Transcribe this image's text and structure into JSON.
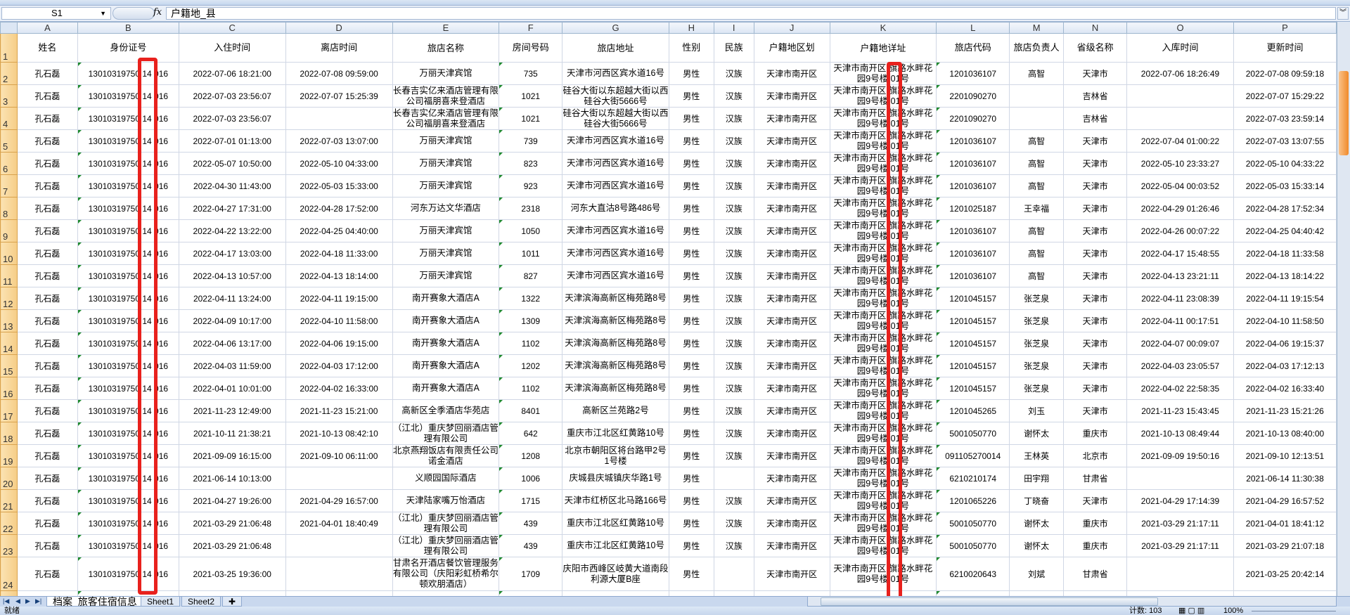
{
  "formula_bar": {
    "name_box": "S1",
    "fx": "fx",
    "formula": "户籍地_县"
  },
  "columns": [
    "A",
    "B",
    "C",
    "D",
    "E",
    "F",
    "G",
    "H",
    "I",
    "J",
    "K",
    "L",
    "M",
    "N",
    "O",
    "P"
  ],
  "headers": [
    "姓名",
    "身份证号",
    "入住时间",
    "离店时间",
    "旅店名称",
    "房间号码",
    "旅店地址",
    "性别",
    "民族",
    "户籍地区划",
    "户籍地详址",
    "旅店代码",
    "旅店负责人",
    "省级名称",
    "入库时间",
    "更新时间"
  ],
  "rows": [
    [
      "孔石磊",
      "13010319750 14 016",
      "2022-07-06 18:21:00",
      "2022-07-08 09:59:00",
      "万丽天津宾馆",
      "735",
      "天津市河西区宾水道16号",
      "男性",
      "汉族",
      "天津市南开区",
      "天津市南开区 旗路水畔花园9号楼 01号",
      "1201036107",
      "高智",
      "天津市",
      "2022-07-06 18:26:49",
      "2022-07-08 09:59:18"
    ],
    [
      "孔石磊",
      "13010319750 14 016",
      "2022-07-03 23:56:07",
      "2022-07-07 15:25:39",
      "长春吉实亿来酒店管理有限公司福朋喜来登酒店",
      "1021",
      "硅谷大街以东超越大街以西硅谷大街5666号",
      "男性",
      "汉族",
      "天津市南开区",
      "天津市南开区 旗路水畔花园9号楼 01号",
      "2201090270",
      "",
      "吉林省",
      "",
      "2022-07-07 15:29:22"
    ],
    [
      "孔石磊",
      "13010319750 14 016",
      "2022-07-03 23:56:07",
      "",
      "长春吉实亿来酒店管理有限公司福朋喜来登酒店",
      "1021",
      "硅谷大街以东超越大街以西硅谷大街5666号",
      "男性",
      "汉族",
      "天津市南开区",
      "天津市南开区 旗路水畔花园9号楼 01号",
      "2201090270",
      "",
      "吉林省",
      "",
      "2022-07-03 23:59:14"
    ],
    [
      "孔石磊",
      "13010319750 14 016",
      "2022-07-01 01:13:00",
      "2022-07-03 13:07:00",
      "万丽天津宾馆",
      "739",
      "天津市河西区宾水道16号",
      "男性",
      "汉族",
      "天津市南开区",
      "天津市南开区 旗路水畔花园9号楼 01号",
      "1201036107",
      "高智",
      "天津市",
      "2022-07-04 01:00:22",
      "2022-07-03 13:07:55"
    ],
    [
      "孔石磊",
      "13010319750 14 016",
      "2022-05-07 10:50:00",
      "2022-05-10 04:33:00",
      "万丽天津宾馆",
      "823",
      "天津市河西区宾水道16号",
      "男性",
      "汉族",
      "天津市南开区",
      "天津市南开区 旗路水畔花园9号楼 01号",
      "1201036107",
      "高智",
      "天津市",
      "2022-05-10 23:33:27",
      "2022-05-10 04:33:22"
    ],
    [
      "孔石磊",
      "13010319750 14 016",
      "2022-04-30 11:43:00",
      "2022-05-03 15:33:00",
      "万丽天津宾馆",
      "923",
      "天津市河西区宾水道16号",
      "男性",
      "汉族",
      "天津市南开区",
      "天津市南开区 旗路水畔花园9号楼 01号",
      "1201036107",
      "高智",
      "天津市",
      "2022-05-04 00:03:52",
      "2022-05-03 15:33:14"
    ],
    [
      "孔石磊",
      "13010319750 14 016",
      "2022-04-27 17:31:00",
      "2022-04-28 17:52:00",
      "河东万达文华酒店",
      "2318",
      "河东大直沽8号路486号",
      "男性",
      "汉族",
      "天津市南开区",
      "天津市南开区 旗路水畔花园9号楼 01号",
      "1201025187",
      "王幸福",
      "天津市",
      "2022-04-29 01:26:46",
      "2022-04-28 17:52:34"
    ],
    [
      "孔石磊",
      "13010319750 14 016",
      "2022-04-22 13:22:00",
      "2022-04-25 04:40:00",
      "万丽天津宾馆",
      "1050",
      "天津市河西区宾水道16号",
      "男性",
      "汉族",
      "天津市南开区",
      "天津市南开区 旗路水畔花园9号楼 01号",
      "1201036107",
      "高智",
      "天津市",
      "2022-04-26 00:07:22",
      "2022-04-25 04:40:42"
    ],
    [
      "孔石磊",
      "13010319750 14 016",
      "2022-04-17 13:03:00",
      "2022-04-18 11:33:00",
      "万丽天津宾馆",
      "1011",
      "天津市河西区宾水道16号",
      "男性",
      "汉族",
      "天津市南开区",
      "天津市南开区 旗路水畔花园9号楼 01号",
      "1201036107",
      "高智",
      "天津市",
      "2022-04-17 15:48:55",
      "2022-04-18 11:33:58"
    ],
    [
      "孔石磊",
      "13010319750 14 016",
      "2022-04-13 10:57:00",
      "2022-04-13 18:14:00",
      "万丽天津宾馆",
      "827",
      "天津市河西区宾水道16号",
      "男性",
      "汉族",
      "天津市南开区",
      "天津市南开区 旗路水畔花园9号楼 01号",
      "1201036107",
      "高智",
      "天津市",
      "2022-04-13 23:21:11",
      "2022-04-13 18:14:22"
    ],
    [
      "孔石磊",
      "13010319750 14 016",
      "2022-04-11 13:24:00",
      "2022-04-11 19:15:00",
      "南开赛象大酒店A",
      "1322",
      "天津滨海高新区梅苑路8号",
      "男性",
      "汉族",
      "天津市南开区",
      "天津市南开区 旗路水畔花园9号楼 01号",
      "1201045157",
      "张芝泉",
      "天津市",
      "2022-04-11 23:08:39",
      "2022-04-11 19:15:54"
    ],
    [
      "孔石磊",
      "13010319750 14 016",
      "2022-04-09 10:17:00",
      "2022-04-10 11:58:00",
      "南开赛象大酒店A",
      "1309",
      "天津滨海高新区梅苑路8号",
      "男性",
      "汉族",
      "天津市南开区",
      "天津市南开区 旗路水畔花园9号楼 01号",
      "1201045157",
      "张芝泉",
      "天津市",
      "2022-04-11 00:17:51",
      "2022-04-10 11:58:50"
    ],
    [
      "孔石磊",
      "13010319750 14 016",
      "2022-04-06 13:17:00",
      "2022-04-06 19:15:00",
      "南开赛象大酒店A",
      "1102",
      "天津滨海高新区梅苑路8号",
      "男性",
      "汉族",
      "天津市南开区",
      "天津市南开区 旗路水畔花园9号楼 01号",
      "1201045157",
      "张芝泉",
      "天津市",
      "2022-04-07 00:09:07",
      "2022-04-06 19:15:37"
    ],
    [
      "孔石磊",
      "13010319750 14 016",
      "2022-04-03 11:59:00",
      "2022-04-03 17:12:00",
      "南开赛象大酒店A",
      "1202",
      "天津滨海高新区梅苑路8号",
      "男性",
      "汉族",
      "天津市南开区",
      "天津市南开区 旗路水畔花园9号楼 01号",
      "1201045157",
      "张芝泉",
      "天津市",
      "2022-04-03 23:05:57",
      "2022-04-03 17:12:13"
    ],
    [
      "孔石磊",
      "13010319750 14 016",
      "2022-04-01 10:01:00",
      "2022-04-02 16:33:00",
      "南开赛象大酒店A",
      "1102",
      "天津滨海高新区梅苑路8号",
      "男性",
      "汉族",
      "天津市南开区",
      "天津市南开区 旗路水畔花园9号楼 01号",
      "1201045157",
      "张芝泉",
      "天津市",
      "2022-04-02 22:58:35",
      "2022-04-02 16:33:40"
    ],
    [
      "孔石磊",
      "13010319750 14 016",
      "2021-11-23 12:49:00",
      "2021-11-23 15:21:00",
      "高新区全季酒店华苑店",
      "8401",
      "高新区兰苑路2号",
      "男性",
      "汉族",
      "天津市南开区",
      "天津市南开区 旗路水畔花园9号楼 01号",
      "1201045265",
      "刘玉",
      "天津市",
      "2021-11-23 15:43:45",
      "2021-11-23 15:21:26"
    ],
    [
      "孔石磊",
      "13010319750 14 016",
      "2021-10-11 21:38:21",
      "2021-10-13 08:42:10",
      "（江北）重庆梦回丽酒店管理有限公司",
      "642",
      "重庆市江北区红黄路10号",
      "男性",
      "汉族",
      "天津市南开区",
      "天津市南开区 旗路水畔花园9号楼 01号",
      "5001050770",
      "谢怀太",
      "重庆市",
      "2021-10-13 08:49:44",
      "2021-10-13 08:40:00"
    ],
    [
      "孔石磊",
      "13010319750 14 016",
      "2021-09-09 16:15:00",
      "2021-09-10 06:11:00",
      "北京燕翔饭店有限责任公司诺金酒店",
      "1208",
      "北京市朝阳区将台路甲2号1号楼",
      "男性",
      "汉族",
      "天津市南开区",
      "天津市南开区 旗路水畔花园9号楼 01号",
      "091105270014",
      "王林英",
      "北京市",
      "2021-09-09 19:50:16",
      "2021-09-10 12:13:51"
    ],
    [
      "孔石磊",
      "13010319750 14 016",
      "2021-06-14 10:13:00",
      "",
      "义顺园国际酒店",
      "1006",
      "庆城县庆城镇庆华路1号",
      "男性",
      "",
      "天津市南开区",
      "天津市南开区 旗路水畔花园9号楼 01号",
      "6210210174",
      "田宇翔",
      "甘肃省",
      "",
      "2021-06-14 11:30:38"
    ],
    [
      "孔石磊",
      "13010319750 14 016",
      "2021-04-27 19:26:00",
      "2021-04-29 16:57:00",
      "天津陆家嘴万怡酒店",
      "1715",
      "天津市红桥区北马路166号",
      "男性",
      "汉族",
      "天津市南开区",
      "天津市南开区 旗路水畔花园9号楼 01号",
      "1201065226",
      "丁晓奋",
      "天津市",
      "2021-04-29 17:14:39",
      "2021-04-29 16:57:52"
    ],
    [
      "孔石磊",
      "13010319750 14 016",
      "2021-03-29 21:06:48",
      "2021-04-01 18:40:49",
      "（江北）重庆梦回丽酒店管理有限公司",
      "439",
      "重庆市江北区红黄路10号",
      "男性",
      "汉族",
      "天津市南开区",
      "天津市南开区 旗路水畔花园9号楼 01号",
      "5001050770",
      "谢怀太",
      "重庆市",
      "2021-03-29 21:17:11",
      "2021-04-01 18:41:12"
    ],
    [
      "孔石磊",
      "13010319750 14 016",
      "2021-03-29 21:06:48",
      "",
      "（江北）重庆梦回丽酒店管理有限公司",
      "439",
      "重庆市江北区红黄路10号",
      "男性",
      "汉族",
      "天津市南开区",
      "天津市南开区 旗路水畔花园9号楼 01号",
      "5001050770",
      "谢怀太",
      "重庆市",
      "2021-03-29 21:17:11",
      "2021-03-29 21:07:18"
    ],
    [
      "孔石磊",
      "13010319750 14 016",
      "2021-03-25 19:36:00",
      "",
      "甘肃名开酒店餐饮管理服务有限公司（庆阳彩虹桥希尔顿欢朋酒店）",
      "1709",
      "庆阳市西峰区岐黄大道南段利源大厦B座",
      "男性",
      "",
      "天津市南开区",
      "天津市南开区 旗路水畔花园9号楼 01号",
      "6210020643",
      "刘斌",
      "甘肃省",
      "",
      "2021-03-25 20:42:14"
    ]
  ],
  "sheet_tabs": [
    "档案_旅客住宿信息",
    "Sheet1",
    "Sheet2"
  ],
  "active_tab": "档案_旅客住宿信息",
  "status": {
    "ready": "就绪",
    "count": "计数: 103",
    "zoom": "100%"
  },
  "colors": {
    "annotation": "#e8211d",
    "row_header": "#f6cd86",
    "green_marker": "#1f8a2e"
  }
}
